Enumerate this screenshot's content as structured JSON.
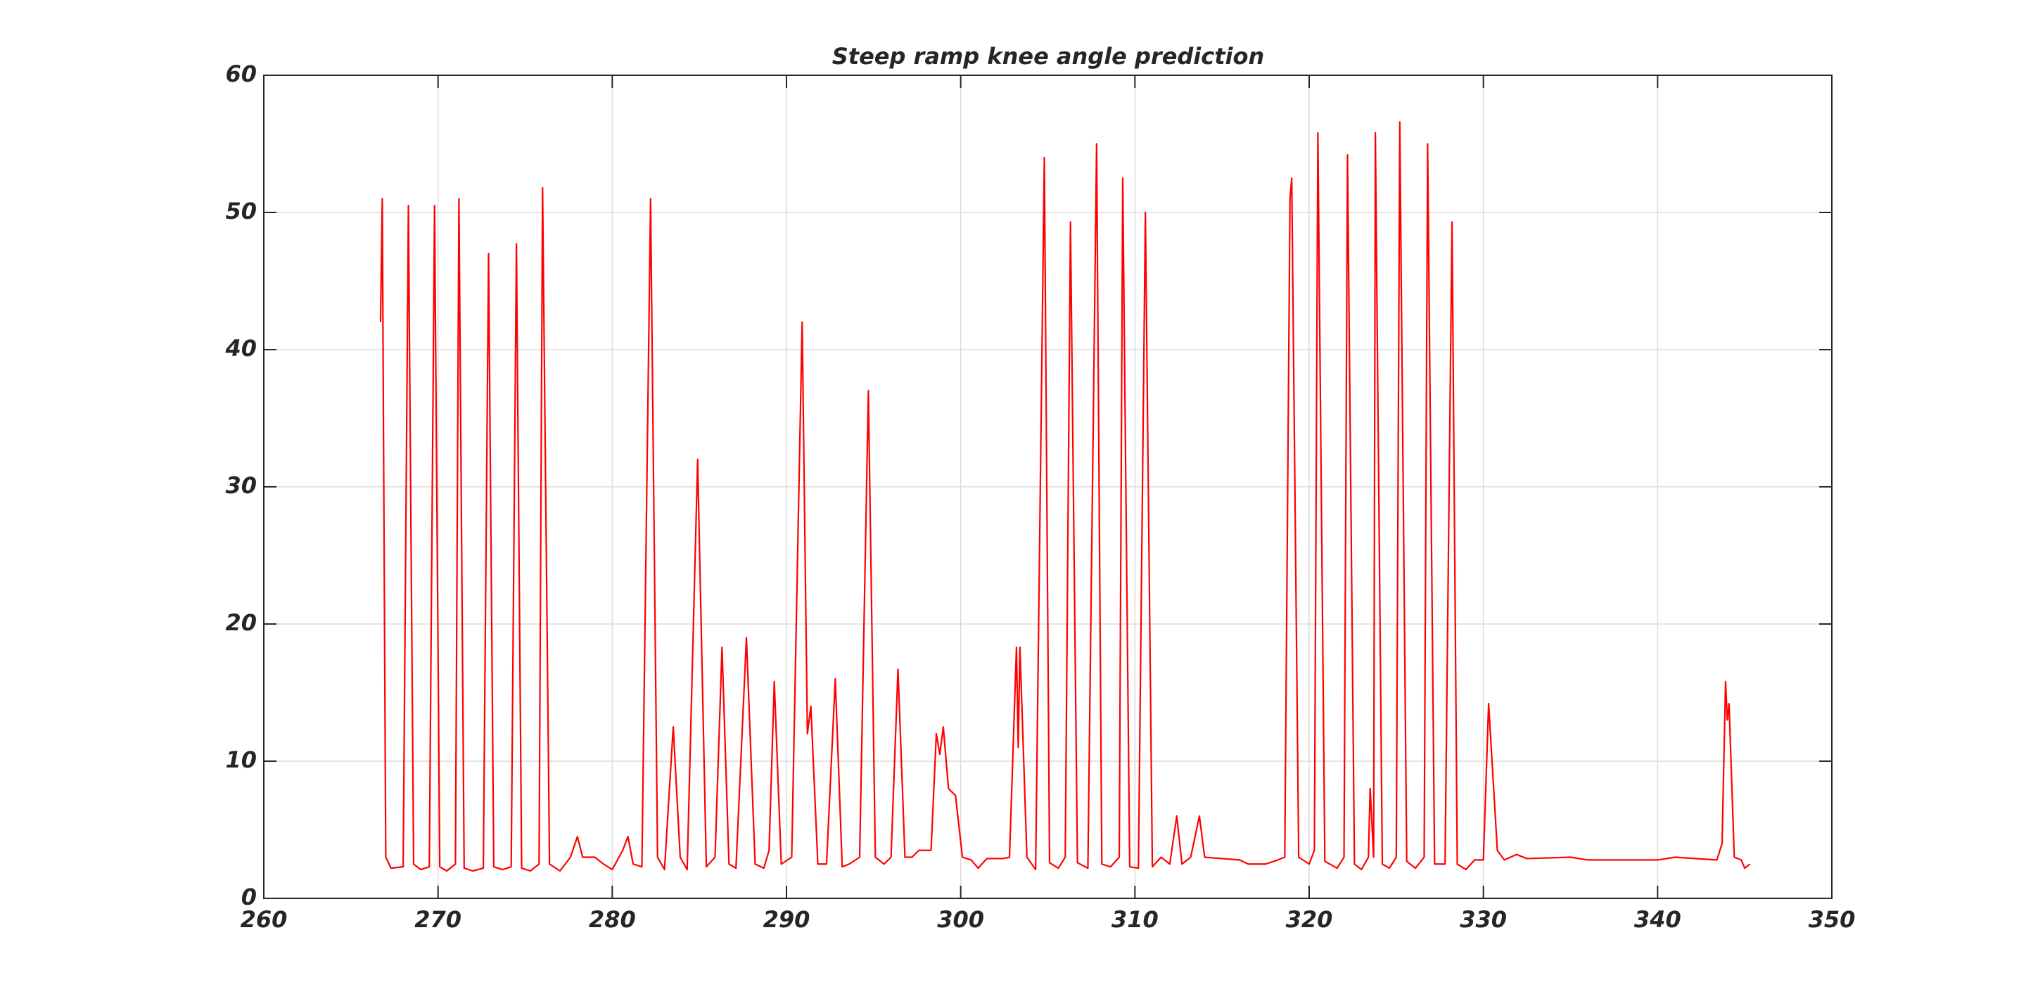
{
  "chart_data": {
    "type": "line",
    "title": "Steep ramp knee angle prediction",
    "x": [
      266.7,
      266.8,
      267.0,
      267.3,
      268.0,
      268.3,
      268.6,
      269.0,
      269.5,
      269.8,
      270.1,
      270.5,
      271.0,
      271.2,
      271.5,
      272.0,
      272.6,
      272.9,
      273.2,
      273.7,
      274.2,
      274.5,
      274.8,
      275.3,
      275.8,
      276.0,
      276.4,
      277.0,
      277.6,
      278.0,
      278.3,
      279.0,
      279.5,
      280.0,
      280.6,
      280.9,
      281.2,
      281.7,
      282.2,
      282.6,
      283.0,
      283.5,
      283.9,
      284.3,
      284.9,
      285.4,
      285.9,
      286.3,
      286.7,
      287.1,
      287.7,
      288.2,
      288.7,
      289.0,
      289.3,
      289.7,
      290.3,
      290.9,
      291.2,
      291.4,
      291.8,
      292.3,
      292.8,
      293.2,
      293.6,
      294.2,
      294.7,
      295.1,
      295.6,
      296.0,
      296.4,
      296.8,
      297.2,
      297.6,
      298.3,
      298.6,
      298.8,
      299.0,
      299.3,
      299.7,
      300.1,
      300.6,
      301.0,
      301.5,
      302.4,
      302.8,
      303.2,
      303.3,
      303.4,
      303.8,
      304.3,
      304.8,
      305.1,
      305.6,
      306.0,
      306.3,
      306.7,
      307.3,
      307.8,
      308.1,
      308.6,
      309.1,
      309.3,
      309.7,
      310.2,
      310.6,
      311.0,
      311.5,
      312.0,
      312.4,
      312.7,
      313.2,
      313.7,
      314.0,
      315.0,
      316.0,
      316.5,
      317.5,
      318.2,
      318.6,
      318.9,
      319.0,
      319.4,
      320.0,
      320.3,
      320.5,
      320.9,
      321.6,
      322.0,
      322.2,
      322.6,
      323.0,
      323.4,
      323.5,
      323.7,
      323.8,
      324.2,
      324.6,
      325.0,
      325.2,
      325.6,
      326.1,
      326.6,
      326.8,
      327.2,
      327.8,
      328.2,
      328.5,
      329.0,
      329.5,
      330.0,
      330.3,
      330.8,
      331.2,
      331.9,
      332.5,
      335.0,
      336.0,
      340.0,
      341.0,
      343.4,
      343.7,
      343.9,
      344.0,
      344.1,
      344.4,
      344.8,
      345.0,
      345.3
    ],
    "values": [
      42,
      51,
      3,
      2.2,
      2.3,
      50.5,
      2.5,
      2.1,
      2.3,
      50.5,
      2.3,
      2.0,
      2.5,
      51,
      2.2,
      2.0,
      2.2,
      47,
      2.3,
      2.1,
      2.3,
      47.7,
      2.2,
      2.0,
      2.5,
      51.8,
      2.5,
      2.0,
      3,
      4.5,
      3,
      3,
      2.5,
      2.1,
      3.5,
      4.5,
      2.5,
      2.3,
      51,
      3,
      2.1,
      12.5,
      3,
      2.1,
      32,
      2.3,
      3,
      18.3,
      2.5,
      2.2,
      19,
      2.5,
      2.2,
      3.5,
      15.8,
      2.5,
      3,
      42,
      12,
      14,
      2.5,
      2.5,
      16,
      2.3,
      2.5,
      3,
      37,
      3,
      2.5,
      3,
      16.7,
      3,
      3,
      3.5,
      3.5,
      12,
      10.5,
      12.5,
      8,
      7.5,
      3,
      2.8,
      2.2,
      2.9,
      2.9,
      3,
      18.3,
      11,
      18.3,
      3,
      2.1,
      54,
      2.6,
      2.2,
      3,
      49.3,
      2.6,
      2.2,
      55,
      2.5,
      2.3,
      3,
      52.5,
      2.3,
      2.2,
      50,
      2.3,
      3,
      2.5,
      6,
      2.5,
      3,
      6,
      3,
      2.9,
      2.8,
      2.5,
      2.5,
      2.8,
      3,
      51,
      52.5,
      3,
      2.5,
      3.5,
      55.8,
      2.7,
      2.2,
      3,
      54.2,
      2.5,
      2.1,
      3,
      8,
      3,
      55.8,
      2.5,
      2.2,
      3,
      56.6,
      2.7,
      2.2,
      3,
      55,
      2.5,
      2.5,
      49.3,
      2.5,
      2.1,
      2.8,
      2.8,
      14.2,
      3.5,
      2.8,
      3.2,
      2.9,
      3.0,
      2.8,
      2.8,
      3.0,
      2.8,
      4,
      15.8,
      13,
      14.2,
      3,
      2.8,
      2.2,
      2.5
    ],
    "color": "#ff0000",
    "xlim": [
      260,
      350
    ],
    "xticks": [
      260,
      270,
      280,
      290,
      300,
      310,
      320,
      330,
      340,
      350
    ],
    "ylim": [
      0,
      60
    ],
    "yticks": [
      0,
      10,
      20,
      30,
      40,
      50,
      60
    ],
    "grid": true
  }
}
